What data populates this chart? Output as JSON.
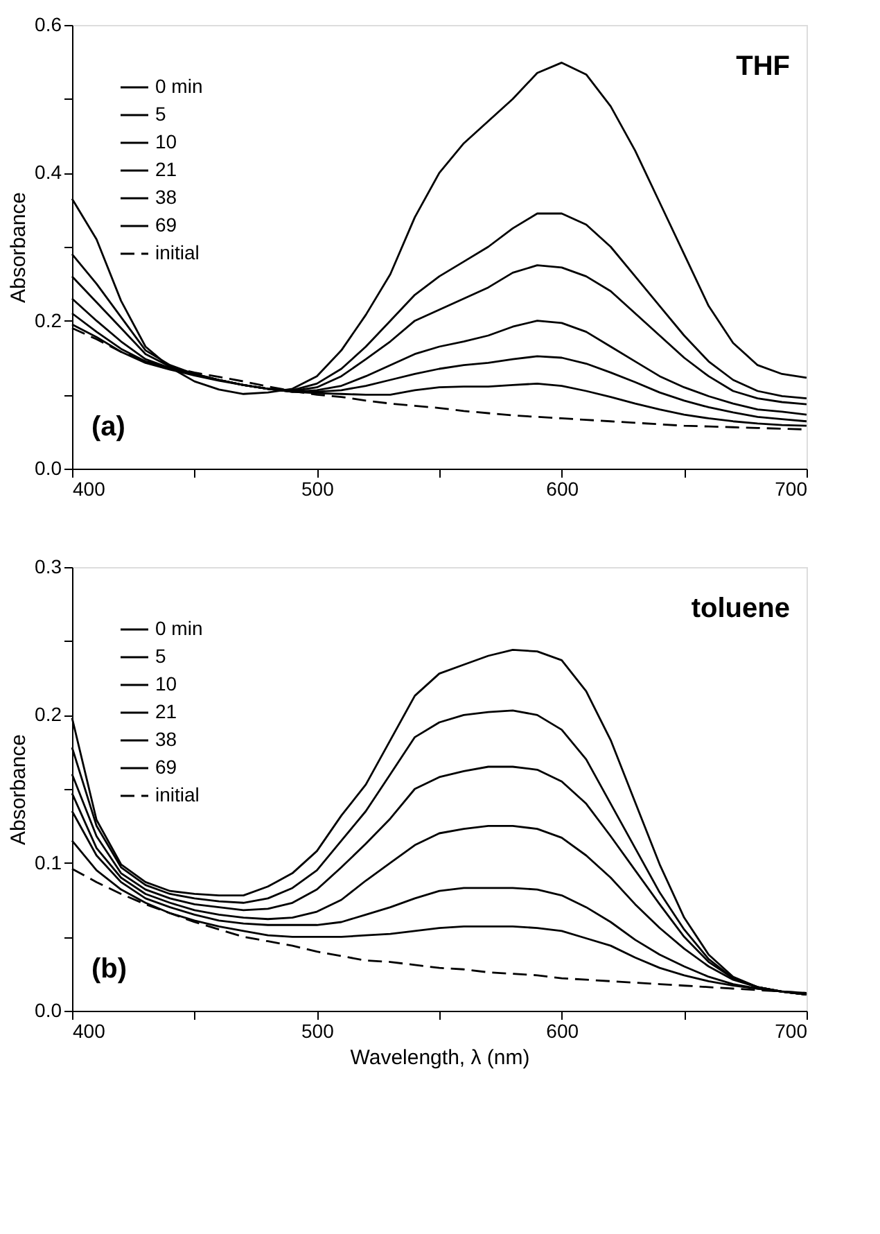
{
  "chart_data": [
    {
      "type": "line",
      "ylabel": "Absorbance",
      "annotations": [
        "THF",
        "(a)"
      ],
      "legend": "top left",
      "grid": false,
      "marker": "none",
      "x": [
        400,
        410,
        420,
        430,
        440,
        450,
        460,
        470,
        480,
        490,
        500,
        510,
        520,
        530,
        540,
        550,
        560,
        570,
        580,
        590,
        600,
        610,
        620,
        630,
        640,
        650,
        660,
        670,
        680,
        690,
        700
      ],
      "xlim": [
        400,
        700
      ],
      "xticks": [
        400,
        {
          "value": 450,
          "label": null
        },
        500,
        {
          "value": 550,
          "label": null
        },
        600,
        {
          "value": 650,
          "label": null
        },
        700
      ],
      "ylim": [
        0,
        0.6
      ],
      "yticks": [
        {
          "value": 0,
          "label": "0.0"
        },
        {
          "value": 0.1,
          "label": null
        },
        0.2,
        {
          "value": 0.3,
          "label": null
        },
        0.4,
        {
          "value": 0.5,
          "label": null
        },
        0.6
      ],
      "series": [
        {
          "name": "0 min",
          "color": "#000000",
          "line_style": "solid",
          "values": [
            0.365,
            0.31,
            0.227,
            0.165,
            0.137,
            0.118,
            0.107,
            0.101,
            0.103,
            0.108,
            0.125,
            0.16,
            0.208,
            0.263,
            0.34,
            0.4,
            0.44,
            0.47,
            0.5,
            0.535,
            0.549,
            0.533,
            0.49,
            0.43,
            0.36,
            0.29,
            0.22,
            0.17,
            0.14,
            0.128,
            0.123
          ]
        },
        {
          "name": "5",
          "color": "#000000",
          "line_style": "solid",
          "values": [
            0.29,
            0.25,
            0.205,
            0.16,
            0.14,
            0.128,
            0.12,
            0.113,
            0.108,
            0.106,
            0.115,
            0.135,
            0.165,
            0.2,
            0.235,
            0.26,
            0.28,
            0.3,
            0.325,
            0.345,
            0.345,
            0.33,
            0.3,
            0.26,
            0.22,
            0.18,
            0.145,
            0.12,
            0.105,
            0.098,
            0.095
          ]
        },
        {
          "name": "10",
          "color": "#000000",
          "line_style": "solid",
          "values": [
            0.26,
            0.225,
            0.19,
            0.155,
            0.138,
            0.128,
            0.12,
            0.113,
            0.108,
            0.105,
            0.11,
            0.125,
            0.148,
            0.172,
            0.2,
            0.215,
            0.23,
            0.245,
            0.265,
            0.275,
            0.272,
            0.26,
            0.24,
            0.21,
            0.18,
            0.15,
            0.125,
            0.105,
            0.095,
            0.09,
            0.087
          ]
        },
        {
          "name": "21",
          "color": "#000000",
          "line_style": "solid",
          "values": [
            0.23,
            0.2,
            0.172,
            0.148,
            0.136,
            0.127,
            0.12,
            0.113,
            0.108,
            0.104,
            0.106,
            0.112,
            0.125,
            0.14,
            0.155,
            0.165,
            0.172,
            0.18,
            0.192,
            0.2,
            0.197,
            0.185,
            0.165,
            0.145,
            0.125,
            0.11,
            0.098,
            0.088,
            0.08,
            0.077,
            0.073
          ]
        },
        {
          "name": "38",
          "color": "#000000",
          "line_style": "solid",
          "values": [
            0.21,
            0.185,
            0.162,
            0.145,
            0.135,
            0.127,
            0.12,
            0.113,
            0.108,
            0.104,
            0.104,
            0.106,
            0.112,
            0.12,
            0.128,
            0.135,
            0.14,
            0.143,
            0.148,
            0.152,
            0.15,
            0.142,
            0.13,
            0.117,
            0.103,
            0.092,
            0.083,
            0.076,
            0.07,
            0.067,
            0.064
          ]
        },
        {
          "name": "69",
          "color": "#000000",
          "line_style": "solid",
          "values": [
            0.195,
            0.178,
            0.158,
            0.143,
            0.134,
            0.126,
            0.119,
            0.113,
            0.108,
            0.104,
            0.102,
            0.101,
            0.1,
            0.1,
            0.106,
            0.11,
            0.111,
            0.111,
            0.113,
            0.115,
            0.112,
            0.105,
            0.097,
            0.088,
            0.08,
            0.073,
            0.068,
            0.064,
            0.061,
            0.059,
            0.058
          ]
        },
        {
          "name": "initial",
          "color": "#000000",
          "line_style": "dashed",
          "values": [
            0.19,
            0.175,
            0.158,
            0.145,
            0.137,
            0.13,
            0.124,
            0.118,
            0.111,
            0.105,
            0.1,
            0.097,
            0.092,
            0.088,
            0.085,
            0.082,
            0.078,
            0.075,
            0.072,
            0.07,
            0.068,
            0.066,
            0.064,
            0.062,
            0.06,
            0.058,
            0.057,
            0.056,
            0.055,
            0.054,
            0.053
          ]
        }
      ]
    },
    {
      "type": "line",
      "xlabel": "Wavelength, λ (nm)",
      "ylabel": "Absorbance",
      "annotations": [
        "toluene",
        "(b)"
      ],
      "legend": "top left",
      "grid": false,
      "marker": "none",
      "x": [
        400,
        410,
        420,
        430,
        440,
        450,
        460,
        470,
        480,
        490,
        500,
        510,
        520,
        530,
        540,
        550,
        560,
        570,
        580,
        590,
        600,
        610,
        620,
        630,
        640,
        650,
        660,
        670,
        680,
        690,
        700
      ],
      "xlim": [
        400,
        700
      ],
      "xticks": [
        400,
        {
          "value": 450,
          "label": null
        },
        500,
        {
          "value": 550,
          "label": null
        },
        600,
        {
          "value": 650,
          "label": null
        },
        700
      ],
      "ylim": [
        0,
        0.3
      ],
      "yticks": [
        {
          "value": 0,
          "label": "0.0"
        },
        {
          "value": 0.05,
          "label": null
        },
        {
          "value": 0.1,
          "label": "0.1"
        },
        {
          "value": 0.15,
          "label": null
        },
        {
          "value": 0.2,
          "label": "0.2"
        },
        {
          "value": 0.25,
          "label": null
        },
        {
          "value": 0.3,
          "label": "0.3"
        }
      ],
      "series": [
        {
          "name": "0 min",
          "color": "#000000",
          "line_style": "solid",
          "values": [
            0.198,
            0.129,
            0.099,
            0.087,
            0.081,
            0.079,
            0.078,
            0.078,
            0.084,
            0.093,
            0.108,
            0.132,
            0.153,
            0.183,
            0.213,
            0.228,
            0.234,
            0.24,
            0.244,
            0.243,
            0.237,
            0.216,
            0.183,
            0.141,
            0.099,
            0.063,
            0.038,
            0.023,
            0.016,
            0.013,
            0.011
          ]
        },
        {
          "name": "5",
          "color": "#000000",
          "line_style": "solid",
          "values": [
            0.178,
            0.125,
            0.097,
            0.085,
            0.079,
            0.076,
            0.074,
            0.073,
            0.076,
            0.083,
            0.095,
            0.115,
            0.135,
            0.16,
            0.185,
            0.195,
            0.2,
            0.202,
            0.203,
            0.2,
            0.19,
            0.17,
            0.14,
            0.11,
            0.08,
            0.055,
            0.035,
            0.022,
            0.016,
            0.013,
            0.011
          ]
        },
        {
          "name": "10",
          "color": "#000000",
          "line_style": "solid",
          "values": [
            0.16,
            0.118,
            0.093,
            0.082,
            0.076,
            0.072,
            0.07,
            0.068,
            0.069,
            0.073,
            0.082,
            0.097,
            0.113,
            0.13,
            0.15,
            0.158,
            0.162,
            0.165,
            0.165,
            0.163,
            0.155,
            0.14,
            0.118,
            0.095,
            0.072,
            0.05,
            0.033,
            0.022,
            0.016,
            0.013,
            0.011
          ]
        },
        {
          "name": "21",
          "color": "#000000",
          "line_style": "solid",
          "values": [
            0.147,
            0.11,
            0.09,
            0.079,
            0.073,
            0.068,
            0.065,
            0.063,
            0.062,
            0.063,
            0.067,
            0.075,
            0.088,
            0.1,
            0.112,
            0.12,
            0.123,
            0.125,
            0.125,
            0.123,
            0.117,
            0.105,
            0.09,
            0.072,
            0.056,
            0.042,
            0.03,
            0.021,
            0.016,
            0.013,
            0.011
          ]
        },
        {
          "name": "38",
          "color": "#000000",
          "line_style": "solid",
          "values": [
            0.135,
            0.105,
            0.087,
            0.076,
            0.07,
            0.065,
            0.061,
            0.059,
            0.058,
            0.058,
            0.058,
            0.06,
            0.065,
            0.07,
            0.076,
            0.081,
            0.083,
            0.083,
            0.083,
            0.082,
            0.078,
            0.07,
            0.06,
            0.048,
            0.038,
            0.03,
            0.023,
            0.018,
            0.015,
            0.013,
            0.011
          ]
        },
        {
          "name": "69",
          "color": "#000000",
          "line_style": "solid",
          "values": [
            0.115,
            0.095,
            0.082,
            0.073,
            0.066,
            0.061,
            0.057,
            0.054,
            0.051,
            0.05,
            0.05,
            0.05,
            0.051,
            0.052,
            0.054,
            0.056,
            0.057,
            0.057,
            0.057,
            0.056,
            0.054,
            0.049,
            0.044,
            0.036,
            0.029,
            0.024,
            0.02,
            0.017,
            0.015,
            0.013,
            0.012
          ]
        },
        {
          "name": "initial",
          "color": "#000000",
          "line_style": "dashed",
          "values": [
            0.096,
            0.087,
            0.079,
            0.072,
            0.066,
            0.06,
            0.055,
            0.05,
            0.047,
            0.044,
            0.04,
            0.037,
            0.034,
            0.033,
            0.031,
            0.029,
            0.028,
            0.026,
            0.025,
            0.024,
            0.022,
            0.021,
            0.02,
            0.019,
            0.018,
            0.017,
            0.016,
            0.015,
            0.014,
            0.013,
            0.012
          ]
        }
      ]
    }
  ]
}
